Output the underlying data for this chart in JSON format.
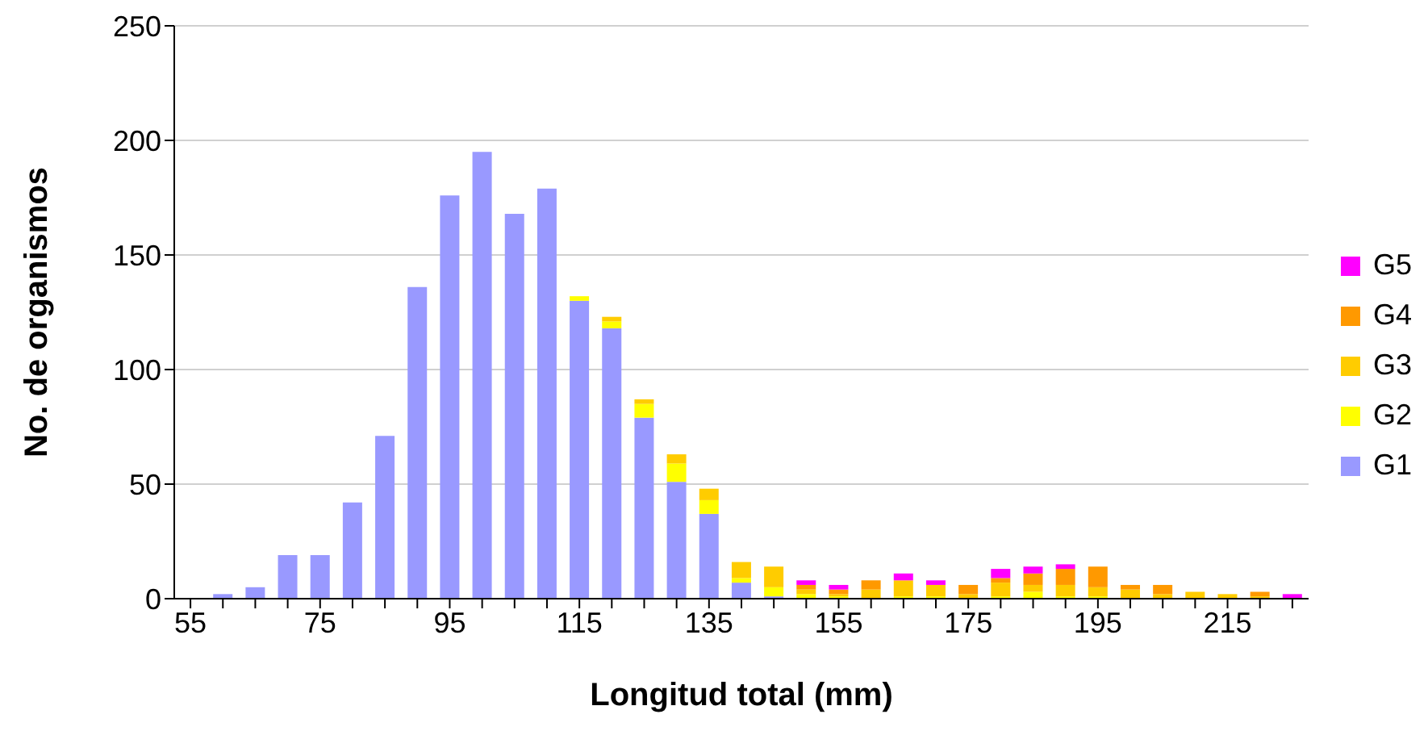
{
  "chart_data": {
    "type": "bar",
    "stacked": true,
    "xlabel": "Longitud total (mm)",
    "ylabel": "No. de organismos",
    "categories": [
      "55",
      null,
      null,
      null,
      "75",
      null,
      null,
      null,
      "95",
      null,
      null,
      null,
      "115",
      null,
      null,
      null,
      "135",
      null,
      null,
      null,
      "155",
      null,
      null,
      null,
      "175",
      null,
      null,
      null,
      "195",
      null,
      null,
      null,
      "215",
      null,
      null
    ],
    "series": [
      {
        "name": "G1",
        "color": "#9999ff",
        "values": [
          0,
          2,
          5,
          19,
          19,
          42,
          71,
          136,
          176,
          195,
          168,
          179,
          130,
          118,
          79,
          51,
          37,
          7,
          1,
          0,
          0,
          0,
          0,
          0,
          0,
          0,
          0,
          0,
          0,
          0,
          0,
          0,
          0,
          0,
          0
        ]
      },
      {
        "name": "G2",
        "color": "#ffff00",
        "values": [
          0,
          0,
          0,
          0,
          0,
          0,
          0,
          0,
          0,
          0,
          0,
          0,
          2,
          3,
          6,
          8,
          6,
          2,
          4,
          2,
          1,
          0,
          1,
          1,
          0,
          1,
          3,
          1,
          1,
          0,
          0,
          0,
          0,
          0,
          0
        ]
      },
      {
        "name": "G3",
        "color": "#ffcc00",
        "values": [
          0,
          0,
          0,
          0,
          0,
          0,
          0,
          0,
          0,
          0,
          0,
          0,
          0,
          2,
          2,
          4,
          5,
          7,
          9,
          2,
          1,
          4,
          7,
          5,
          2,
          6,
          3,
          5,
          4,
          4,
          2,
          3,
          2,
          1,
          0
        ]
      },
      {
        "name": "G4",
        "color": "#ff9900",
        "values": [
          0,
          0,
          0,
          0,
          0,
          0,
          0,
          0,
          0,
          0,
          0,
          0,
          0,
          0,
          0,
          0,
          0,
          0,
          0,
          2,
          2,
          4,
          0,
          0,
          4,
          2,
          5,
          7,
          9,
          2,
          4,
          0,
          0,
          2,
          0
        ]
      },
      {
        "name": "G5",
        "color": "#ff00ff",
        "values": [
          0,
          0,
          0,
          0,
          0,
          0,
          0,
          0,
          0,
          0,
          0,
          0,
          0,
          0,
          0,
          0,
          0,
          0,
          0,
          2,
          2,
          0,
          3,
          2,
          0,
          4,
          3,
          2,
          0,
          0,
          0,
          0,
          0,
          0,
          2
        ]
      }
    ],
    "ylim": [
      0,
      250
    ],
    "yticks": [
      0,
      50,
      100,
      150,
      200,
      250
    ],
    "grid": "y",
    "legend": "right"
  }
}
